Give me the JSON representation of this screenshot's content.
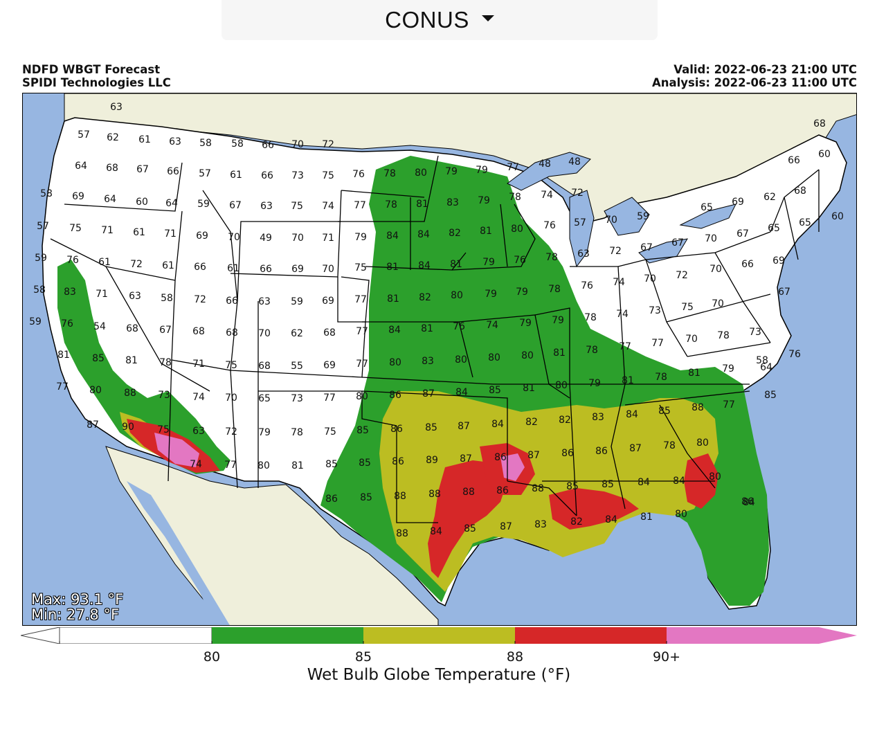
{
  "region_select": {
    "selected": "CONUS"
  },
  "header": {
    "title": "NDFD WBGT Forecast",
    "subtitle": "SPIDI Technologies LLC",
    "valid": "Valid: 2022-06-23 21:00 UTC",
    "analysis": "Analysis: 2022-06-23 11:00 UTC"
  },
  "stats": {
    "max": "Max: 93.1 °F",
    "min": "Min: 27.8 °F"
  },
  "colorbar": {
    "title": "Wet Bulb Globe Temperature (°F)",
    "ticks": [
      "80",
      "85",
      "88",
      "90+"
    ],
    "bins": [
      {
        "label": "<80",
        "color": "#ffffff"
      },
      {
        "label": "80-85",
        "color": "#2ca02c"
      },
      {
        "label": "85-88",
        "color": "#bcbd22"
      },
      {
        "label": "88-90",
        "color": "#d62728"
      },
      {
        "label": "90+",
        "color": "#e377c2"
      }
    ]
  },
  "map_colors": {
    "water": "#97b6e1",
    "land": "#efefdb",
    "border": "#000000"
  },
  "station_values": [
    "63",
    "57",
    "62",
    "61",
    "63",
    "58",
    "58",
    "66",
    "70",
    "72",
    "64",
    "68",
    "67",
    "66",
    "57",
    "61",
    "66",
    "73",
    "75",
    "76",
    "78",
    "80",
    "79",
    "79",
    "77",
    "48",
    "48",
    "68",
    "66",
    "60",
    "58",
    "69",
    "64",
    "60",
    "64",
    "59",
    "67",
    "63",
    "75",
    "74",
    "77",
    "78",
    "81",
    "83",
    "79",
    "78",
    "74",
    "72",
    "65",
    "69",
    "62",
    "68",
    "57",
    "75",
    "71",
    "61",
    "71",
    "69",
    "70",
    "49",
    "70",
    "71",
    "79",
    "84",
    "84",
    "82",
    "81",
    "80",
    "76",
    "57",
    "70",
    "59",
    "70",
    "67",
    "65",
    "65",
    "60",
    "59",
    "76",
    "61",
    "72",
    "61",
    "66",
    "61",
    "66",
    "69",
    "70",
    "75",
    "81",
    "84",
    "81",
    "79",
    "76",
    "78",
    "63",
    "72",
    "67",
    "67",
    "69",
    "58",
    "83",
    "71",
    "63",
    "58",
    "72",
    "66",
    "63",
    "59",
    "69",
    "77",
    "81",
    "82",
    "80",
    "79",
    "79",
    "78",
    "76",
    "74",
    "70",
    "72",
    "70",
    "66",
    "67",
    "59",
    "76",
    "54",
    "68",
    "67",
    "68",
    "68",
    "70",
    "62",
    "68",
    "77",
    "84",
    "81",
    "76",
    "74",
    "79",
    "79",
    "78",
    "74",
    "73",
    "75",
    "70",
    "81",
    "85",
    "81",
    "78",
    "71",
    "75",
    "68",
    "55",
    "69",
    "77",
    "80",
    "83",
    "80",
    "80",
    "80",
    "81",
    "78",
    "77",
    "77",
    "70",
    "78",
    "73",
    "76",
    "58",
    "77",
    "80",
    "88",
    "73",
    "74",
    "70",
    "65",
    "73",
    "77",
    "80",
    "86",
    "87",
    "84",
    "85",
    "81",
    "80",
    "79",
    "81",
    "78",
    "81",
    "79",
    "64",
    "85",
    "87",
    "90",
    "75",
    "63",
    "72",
    "79",
    "78",
    "75",
    "85",
    "86",
    "85",
    "87",
    "84",
    "82",
    "82",
    "83",
    "84",
    "85",
    "88",
    "77",
    "74",
    "77",
    "80",
    "81",
    "85",
    "85",
    "86",
    "89",
    "87",
    "86",
    "87",
    "86",
    "86",
    "87",
    "78",
    "80",
    "86",
    "85",
    "88",
    "88",
    "88",
    "86",
    "88",
    "85",
    "85",
    "84",
    "84",
    "80",
    "84",
    "86",
    "88",
    "84",
    "85",
    "87",
    "83",
    "82",
    "84",
    "81",
    "80"
  ]
}
